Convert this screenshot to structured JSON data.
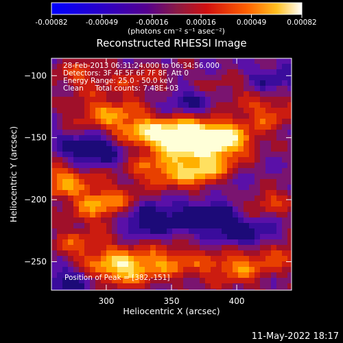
{
  "chart_data": {
    "type": "heatmap",
    "title": "Reconstructed RHESSI Image",
    "xlabel": "Heliocentric X (arcsec)",
    "ylabel": "Heliocentric Y (arcsec)",
    "xlim": [
      258,
      442
    ],
    "ylim": [
      -273,
      -86
    ],
    "xticks": [
      300,
      350,
      400
    ],
    "yticks": [
      -100,
      -150,
      -200,
      -250
    ],
    "colorbar": {
      "label": "(photons cm⁻² s⁻¹ asec⁻²)",
      "range": [
        -0.00082,
        0.00082
      ],
      "ticks": [
        "-0.00082",
        "-0.00049",
        "-0.00016",
        "0.00016",
        "0.00049",
        "0.00082"
      ]
    },
    "info_lines": [
      "28-Feb-2013 06:31:24.000 to 06:34:56.000",
      "Detectors: 3F 4F 5F 6F 7F 8F, Att 0",
      "Energy Range: 25.0 - 50.0 keV",
      "Clean     Total counts: 7.48E+03"
    ],
    "peak_label": "Position of Peak = [382,-151]",
    "peak_position": [
      382,
      -151
    ],
    "footer_timestamp": "11-May-2022 18:17",
    "grid": false,
    "sources": [
      {
        "x": 385,
        "y": -152,
        "strength": 1.0
      },
      {
        "x": 360,
        "y": -150,
        "strength": 0.85
      },
      {
        "x": 330,
        "y": -145,
        "strength": 0.6
      },
      {
        "x": 300,
        "y": -130,
        "strength": 0.55
      },
      {
        "x": 375,
        "y": -178,
        "strength": 0.7
      },
      {
        "x": 340,
        "y": -175,
        "strength": 0.5
      },
      {
        "x": 265,
        "y": -185,
        "strength": 0.6
      },
      {
        "x": 300,
        "y": -205,
        "strength": 0.7
      },
      {
        "x": 425,
        "y": -130,
        "strength": 0.45
      },
      {
        "x": 420,
        "y": -200,
        "strength": 0.45
      },
      {
        "x": 310,
        "y": -255,
        "strength": 0.85
      },
      {
        "x": 350,
        "y": -250,
        "strength": 0.5
      },
      {
        "x": 400,
        "y": -255,
        "strength": 0.55
      },
      {
        "x": 435,
        "y": -240,
        "strength": 0.45
      },
      {
        "x": 280,
        "y": -100,
        "strength": 0.35
      },
      {
        "x": 330,
        "y": -105,
        "strength": 0.3
      },
      {
        "x": 395,
        "y": -110,
        "strength": 0.25
      },
      {
        "x": 280,
        "y": -235,
        "strength": 0.4
      }
    ],
    "sinks": [
      {
        "x": 330,
        "y": -215,
        "strength": 0.6
      },
      {
        "x": 380,
        "y": -215,
        "strength": 0.55
      },
      {
        "x": 290,
        "y": -160,
        "strength": 0.5
      },
      {
        "x": 415,
        "y": -230,
        "strength": 0.45
      },
      {
        "x": 360,
        "y": -120,
        "strength": 0.3
      },
      {
        "x": 270,
        "y": -265,
        "strength": 0.35
      },
      {
        "x": 425,
        "y": -105,
        "strength": 0.3
      },
      {
        "x": 400,
        "y": -190,
        "strength": 0.35
      }
    ]
  }
}
